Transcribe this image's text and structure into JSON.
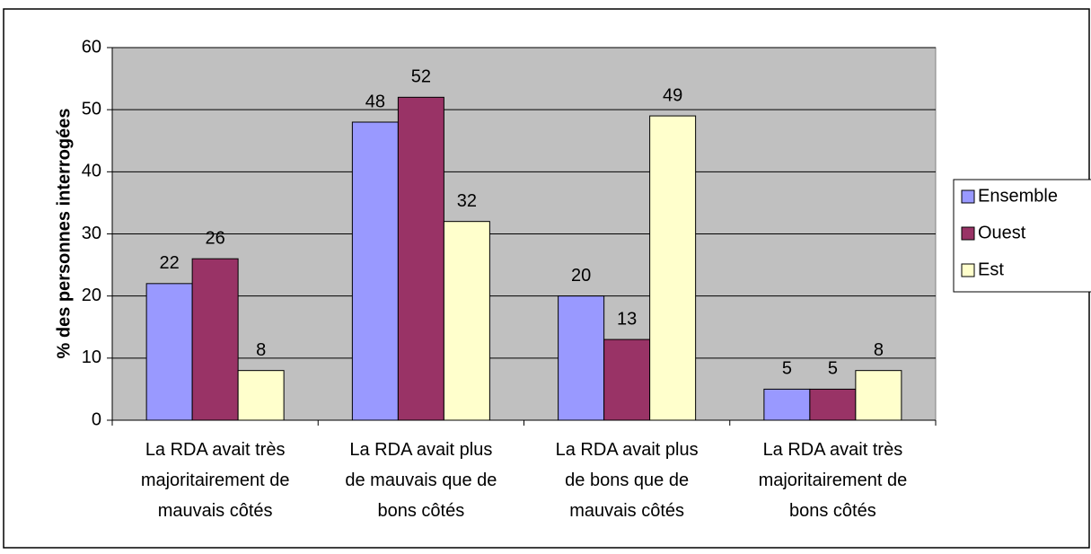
{
  "chart_data": {
    "type": "bar",
    "y_label": "% des personnes interrogées",
    "categories": [
      "La RDA avait très\nmajoritairement de\nmauvais côtés",
      "La RDA avait plus\nde mauvais que de\nbons côtés",
      "La RDA avait plus\nde bons que de\nmauvais côtés",
      "La RDA avait très\nmajoritairement de\nbons côtés"
    ],
    "series": [
      {
        "name": "Ensemble",
        "color": "#9999ff",
        "values": [
          22,
          48,
          20,
          5
        ]
      },
      {
        "name": "Ouest",
        "color": "#993366",
        "values": [
          26,
          52,
          13,
          5
        ]
      },
      {
        "name": "Est",
        "color": "#ffffcc",
        "values": [
          8,
          32,
          49,
          8
        ]
      }
    ],
    "ylim": [
      0,
      60
    ],
    "yticks": [
      0,
      10,
      20,
      30,
      40,
      50,
      60
    ],
    "grid": true,
    "legend": "right",
    "plot_background": "#c0c0c0"
  }
}
